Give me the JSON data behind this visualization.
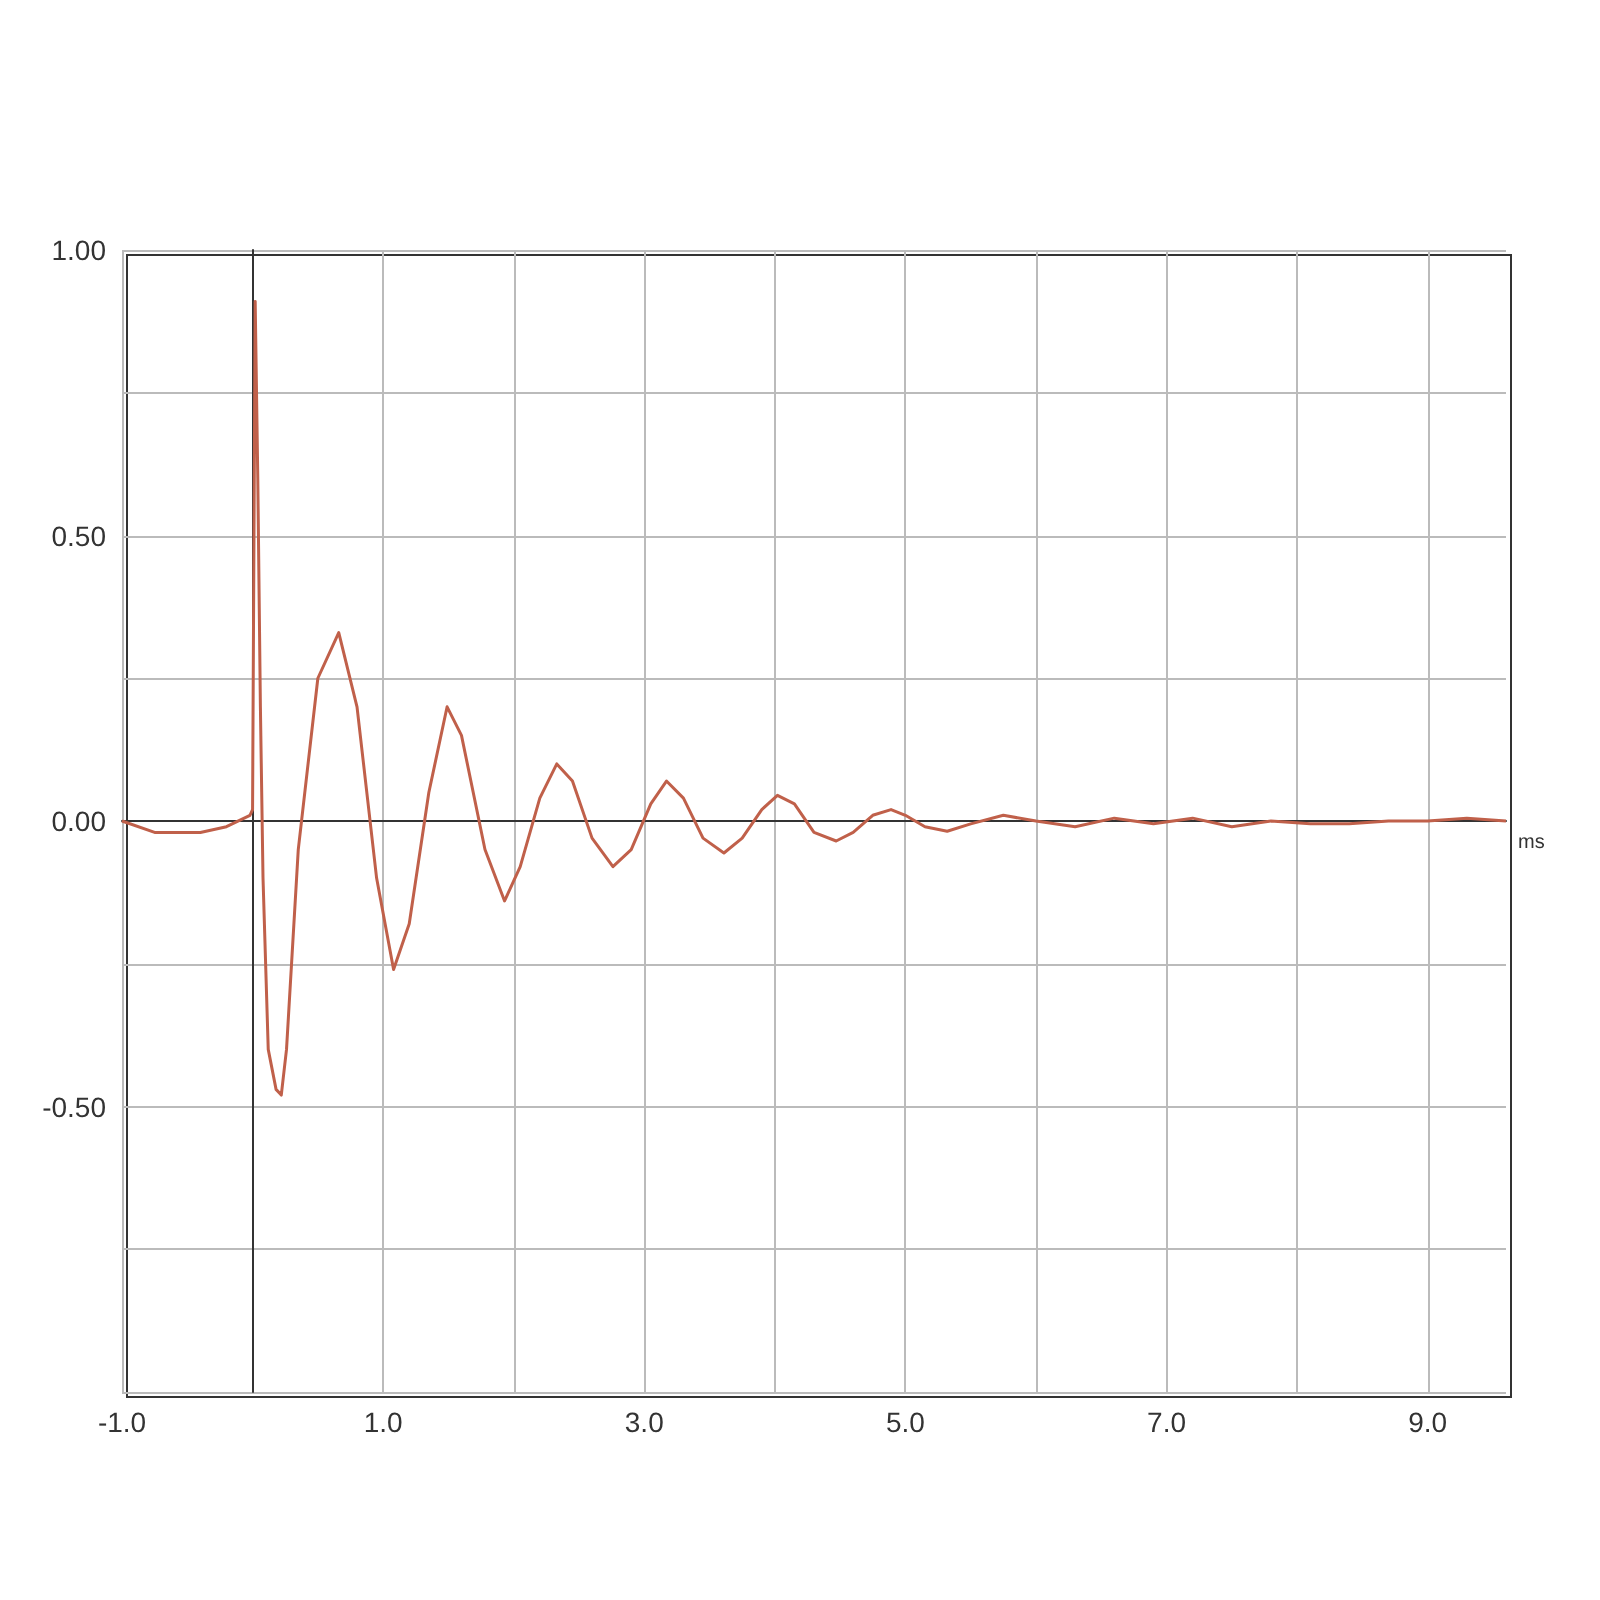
{
  "chart_data": {
    "type": "line",
    "xlabel": "ms",
    "xlim": [
      -1,
      9.6
    ],
    "ylim": [
      -1,
      1
    ],
    "xticks": [
      {
        "value": -1,
        "label": "-1.0"
      },
      {
        "value": 0,
        "label": null
      },
      {
        "value": 1,
        "label": "1.0"
      },
      {
        "value": 2,
        "label": null
      },
      {
        "value": 3,
        "label": "3.0"
      },
      {
        "value": 4,
        "label": null
      },
      {
        "value": 5,
        "label": "5.0"
      },
      {
        "value": 6,
        "label": null
      },
      {
        "value": 7,
        "label": "7.0"
      },
      {
        "value": 8,
        "label": null
      },
      {
        "value": 9,
        "label": "9.0"
      }
    ],
    "yticks": [
      {
        "value": -1,
        "label": null
      },
      {
        "value": -0.75,
        "label": null
      },
      {
        "value": -0.5,
        "label": "-0.50"
      },
      {
        "value": -0.25,
        "label": null
      },
      {
        "value": 0,
        "label": "0.00"
      },
      {
        "value": 0.25,
        "label": null
      },
      {
        "value": 0.5,
        "label": "0.50"
      },
      {
        "value": 0.75,
        "label": null
      },
      {
        "value": 1,
        "label": "1.00"
      }
    ],
    "grid": true,
    "marker": "none",
    "line_style": "solid",
    "series": [
      {
        "color": "#c0604a",
        "x": [
          -1,
          -0.75,
          -0.4,
          -0.2,
          -0.02,
          0,
          0.02,
          0.04,
          0.06,
          0.08,
          0.12,
          0.18,
          0.22,
          0.26,
          0.35,
          0.5,
          0.66,
          0.8,
          0.95,
          1.08,
          1.2,
          1.35,
          1.49,
          1.6,
          1.78,
          1.93,
          2.05,
          2.2,
          2.33,
          2.45,
          2.6,
          2.76,
          2.9,
          3.05,
          3.17,
          3.3,
          3.45,
          3.61,
          3.75,
          3.9,
          4.02,
          4.15,
          4.3,
          4.47,
          4.6,
          4.75,
          4.89,
          5.0,
          5.15,
          5.32,
          5.5,
          5.75,
          6.0,
          6.3,
          6.6,
          6.9,
          7.2,
          7.5,
          7.8,
          8.1,
          8.4,
          8.7,
          9.0,
          9.3,
          9.6
        ],
        "values": [
          0,
          -0.02,
          -0.02,
          -0.01,
          0.01,
          0.02,
          0.91,
          0.6,
          0.2,
          -0.1,
          -0.4,
          -0.47,
          -0.48,
          -0.4,
          -0.05,
          0.25,
          0.33,
          0.2,
          -0.1,
          -0.26,
          -0.18,
          0.05,
          0.2,
          0.15,
          -0.05,
          -0.14,
          -0.08,
          0.04,
          0.1,
          0.07,
          -0.03,
          -0.08,
          -0.05,
          0.03,
          0.07,
          0.04,
          -0.03,
          -0.056,
          -0.03,
          0.02,
          0.045,
          0.03,
          -0.02,
          -0.035,
          -0.02,
          0.01,
          0.02,
          0.01,
          -0.01,
          -0.018,
          -0.005,
          0.01,
          0,
          -0.01,
          0.005,
          -0.005,
          0.005,
          -0.01,
          0,
          -0.005,
          -0.005,
          0,
          0,
          0.005,
          0
        ]
      }
    ]
  }
}
